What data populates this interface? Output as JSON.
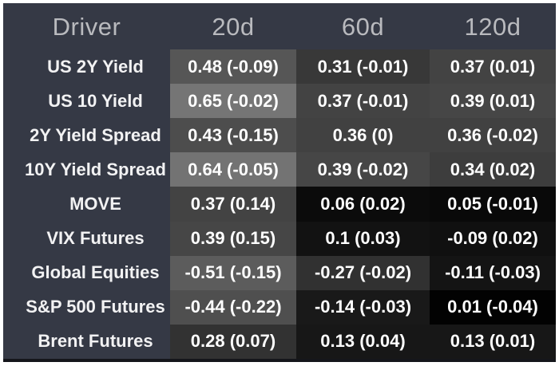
{
  "colors": {
    "page_border": "#ffffff",
    "panel_bg": "#353945",
    "header_text": "#b9babe",
    "label_text": "#f2f2f3",
    "cell_text": "#ffffff",
    "bottom_line": "#15161b",
    "shade_scale": 180
  },
  "table": {
    "columns": [
      "Driver",
      "20d",
      "60d",
      "120d"
    ],
    "rows": [
      {
        "label": "US 2Y Yield",
        "cells": [
          {
            "text": "0.48 (-0.09)",
            "corr": 0.48
          },
          {
            "text": "0.31 (-0.01)",
            "corr": 0.31
          },
          {
            "text": "0.37 (0.01)",
            "corr": 0.37
          }
        ]
      },
      {
        "label": "US 10 Yield",
        "cells": [
          {
            "text": "0.65 (-0.02)",
            "corr": 0.65
          },
          {
            "text": "0.37 (-0.01)",
            "corr": 0.37
          },
          {
            "text": "0.39 (0.01)",
            "corr": 0.39
          }
        ]
      },
      {
        "label": "2Y Yield Spread",
        "cells": [
          {
            "text": "0.43 (-0.15)",
            "corr": 0.43
          },
          {
            "text": "0.36 (0)",
            "corr": 0.36
          },
          {
            "text": "0.36 (-0.02)",
            "corr": 0.36
          }
        ]
      },
      {
        "label": "10Y Yield Spread",
        "cells": [
          {
            "text": "0.64 (-0.05)",
            "corr": 0.64
          },
          {
            "text": "0.39 (-0.02)",
            "corr": 0.39
          },
          {
            "text": "0.34 (0.02)",
            "corr": 0.34
          }
        ]
      },
      {
        "label": "MOVE",
        "cells": [
          {
            "text": "0.37 (0.14)",
            "corr": 0.37
          },
          {
            "text": "0.06 (0.02)",
            "corr": 0.06
          },
          {
            "text": "0.05 (-0.01)",
            "corr": 0.05
          }
        ]
      },
      {
        "label": "VIX Futures",
        "cells": [
          {
            "text": "0.39 (0.15)",
            "corr": 0.39
          },
          {
            "text": "0.1 (0.03)",
            "corr": 0.1
          },
          {
            "text": "-0.09 (0.02)",
            "corr": -0.09
          }
        ]
      },
      {
        "label": "Global Equities",
        "cells": [
          {
            "text": "-0.51 (-0.15)",
            "corr": -0.51
          },
          {
            "text": "-0.27 (-0.02)",
            "corr": -0.27
          },
          {
            "text": "-0.11 (-0.03)",
            "corr": -0.11
          }
        ]
      },
      {
        "label": "S&P 500 Futures",
        "cells": [
          {
            "text": "-0.44 (-0.22)",
            "corr": -0.44
          },
          {
            "text": "-0.14 (-0.03)",
            "corr": -0.14
          },
          {
            "text": "0.01 (-0.04)",
            "corr": 0.01
          }
        ]
      },
      {
        "label": "Brent Futures",
        "cells": [
          {
            "text": "0.28 (0.07)",
            "corr": 0.28
          },
          {
            "text": "0.13 (0.04)",
            "corr": 0.13
          },
          {
            "text": "0.13 (0.01)",
            "corr": 0.13
          }
        ]
      }
    ]
  },
  "chart_data": {
    "type": "heatmap",
    "title": "",
    "columns": [
      "20d",
      "60d",
      "120d"
    ],
    "rows": [
      "US 2Y Yield",
      "US 10 Yield",
      "2Y Yield Spread",
      "10Y Yield Spread",
      "MOVE",
      "VIX Futures",
      "Global Equities",
      "S&P 500 Futures",
      "Brent Futures"
    ],
    "values": [
      [
        0.48,
        0.31,
        0.37
      ],
      [
        0.65,
        0.37,
        0.39
      ],
      [
        0.43,
        0.36,
        0.36
      ],
      [
        0.64,
        0.39,
        0.34
      ],
      [
        0.37,
        0.06,
        0.05
      ],
      [
        0.39,
        0.1,
        -0.09
      ],
      [
        -0.51,
        -0.27,
        -0.11
      ],
      [
        -0.44,
        -0.14,
        0.01
      ],
      [
        0.28,
        0.13,
        0.13
      ]
    ],
    "deltas": [
      [
        -0.09,
        -0.01,
        0.01
      ],
      [
        -0.02,
        -0.01,
        0.01
      ],
      [
        -0.15,
        0,
        -0.02
      ],
      [
        -0.05,
        -0.02,
        0.02
      ],
      [
        0.14,
        0.02,
        -0.01
      ],
      [
        0.15,
        0.03,
        0.02
      ],
      [
        -0.15,
        -0.02,
        -0.03
      ],
      [
        -0.22,
        -0.03,
        -0.04
      ],
      [
        0.07,
        0.04,
        0.01
      ]
    ],
    "cell_format": "correlation (change)",
    "color_scale": "grayscale: black at 0, lighter gray as |correlation| increases",
    "legend_position": "none",
    "grid": false
  }
}
